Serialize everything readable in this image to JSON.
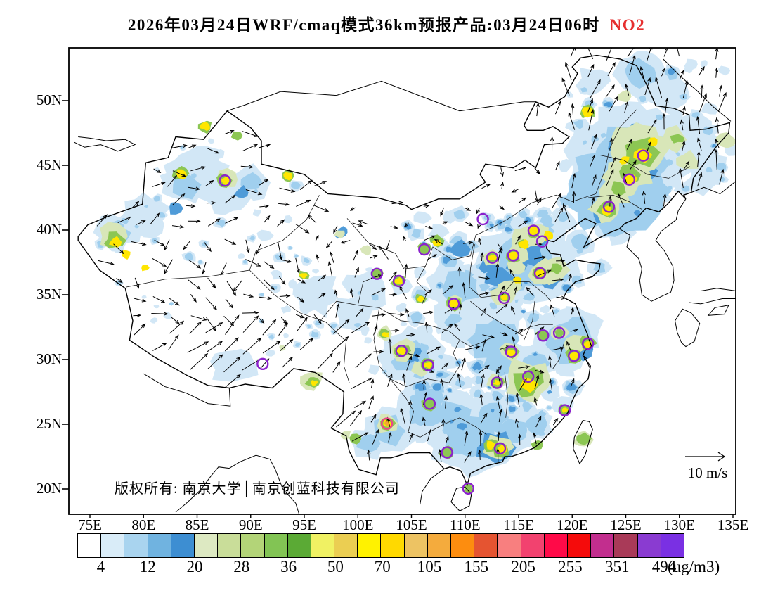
{
  "title": {
    "text": "2026年03月24日WRF/cmaq模式36km预报产品:03月24日06时",
    "pollutant": "NO2",
    "pollutant_color": "#e62e2e"
  },
  "map": {
    "lat_labels": [
      "50N",
      "45N",
      "40N",
      "35N",
      "30N",
      "25N",
      "20N"
    ],
    "lon_labels": [
      "75E",
      "80E",
      "85E",
      "90E",
      "95E",
      "100E",
      "105E",
      "110E",
      "115E",
      "120E",
      "125E",
      "130E",
      "135E"
    ],
    "copyright": "版权所有: 南京大学│南京创蓝科技有限公司",
    "wind_legend": "10 m/s"
  },
  "chart_data": {
    "type": "heatmap",
    "title": "2026年03月24日WRF/cmaq模式36km预报产品:03月24日06时 NO2",
    "model": "WRF/cmaq 36km",
    "valid_time": "03月24日06时",
    "variable": "NO2",
    "lon_axis": [
      "75E",
      "80E",
      "85E",
      "90E",
      "95E",
      "100E",
      "105E",
      "110E",
      "115E",
      "120E",
      "125E",
      "130E",
      "135E"
    ],
    "lat_axis": [
      "20N",
      "25N",
      "30N",
      "35N",
      "40N",
      "45N",
      "50N"
    ],
    "colorbar": {
      "unit": "(ug/m3)",
      "tick_labels": [
        "4",
        "12",
        "20",
        "28",
        "36",
        "50",
        "70",
        "105",
        "155",
        "205",
        "255",
        "351",
        "494"
      ],
      "colors": [
        "#ffffff",
        "#d9ecf8",
        "#a9d4ef",
        "#70b3e0",
        "#3d8ed2",
        "#dde9c2",
        "#c9dd99",
        "#b3d478",
        "#82c454",
        "#5baa35",
        "#f0f163",
        "#ebce52",
        "#fff200",
        "#ffd900",
        "#edc363",
        "#f4ab3d",
        "#fd8d0f",
        "#e55431",
        "#f87f7f",
        "#f2426f",
        "#ff0a48",
        "#f50b0b",
        "#c22e8e",
        "#a93a58",
        "#8a3bd1",
        "#7a30e3"
      ]
    },
    "wind_reference_ms": 10,
    "city_markers": [
      {
        "lon": 87.6,
        "lat": 43.82
      },
      {
        "lon": 111.66,
        "lat": 40.84
      },
      {
        "lon": 116.4,
        "lat": 39.95
      },
      {
        "lon": 117.2,
        "lat": 39.12
      },
      {
        "lon": 114.5,
        "lat": 38.04
      },
      {
        "lon": 112.55,
        "lat": 37.87
      },
      {
        "lon": 117.0,
        "lat": 36.67
      },
      {
        "lon": 113.65,
        "lat": 34.76
      },
      {
        "lon": 108.95,
        "lat": 34.3
      },
      {
        "lon": 106.2,
        "lat": 38.5
      },
      {
        "lon": 103.82,
        "lat": 36.06
      },
      {
        "lon": 101.78,
        "lat": 36.62
      },
      {
        "lon": 126.63,
        "lat": 45.75
      },
      {
        "lon": 125.32,
        "lat": 43.9
      },
      {
        "lon": 123.43,
        "lat": 41.8
      },
      {
        "lon": 117.28,
        "lat": 31.86
      },
      {
        "lon": 118.78,
        "lat": 32.06
      },
      {
        "lon": 121.47,
        "lat": 31.23
      },
      {
        "lon": 120.16,
        "lat": 30.28
      },
      {
        "lon": 114.3,
        "lat": 30.6
      },
      {
        "lon": 104.07,
        "lat": 30.67
      },
      {
        "lon": 106.55,
        "lat": 29.57
      },
      {
        "lon": 112.98,
        "lat": 28.2
      },
      {
        "lon": 115.9,
        "lat": 28.68
      },
      {
        "lon": 119.3,
        "lat": 26.08
      },
      {
        "lon": 106.7,
        "lat": 26.58
      },
      {
        "lon": 102.71,
        "lat": 25.05,
        "color": "#ee4488"
      },
      {
        "lon": 113.26,
        "lat": 23.13
      },
      {
        "lon": 108.32,
        "lat": 22.82
      },
      {
        "lon": 110.3,
        "lat": 20.03
      },
      {
        "lon": 91.12,
        "lat": 29.66
      }
    ],
    "hotspots_approx": [
      [
        125.5,
        45.8,
        85,
        2
      ],
      [
        124,
        43,
        70,
        2,
        2
      ],
      [
        124.5,
        43.6,
        18,
        3,
        3
      ],
      [
        126.9,
        44.6,
        16,
        3,
        3
      ],
      [
        127.4,
        46.2,
        14,
        3,
        3
      ],
      [
        124.3,
        46.5,
        14,
        3,
        3
      ],
      [
        126,
        47.6,
        13,
        3,
        3
      ],
      [
        126.2,
        46.3,
        42,
        4,
        4
      ],
      [
        125,
        44.4,
        34,
        4,
        4
      ],
      [
        123.8,
        42.8,
        24,
        4,
        4
      ],
      [
        126.3,
        46,
        26,
        5,
        5
      ],
      [
        125.3,
        44.3,
        16,
        5,
        5
      ],
      [
        124.3,
        43.3,
        12,
        5,
        5
      ],
      [
        126.63,
        45.8,
        12,
        6,
        6
      ],
      [
        125.32,
        43.95,
        10,
        6,
        6
      ],
      [
        124.9,
        45.4,
        7,
        6,
        6
      ],
      [
        127.6,
        46.8,
        7,
        6,
        6
      ],
      [
        122.9,
        41.3,
        16,
        3,
        3
      ],
      [
        123.2,
        41.6,
        22,
        4,
        4
      ],
      [
        123.3,
        41.7,
        14,
        5,
        5
      ],
      [
        123.2,
        41.5,
        8,
        6,
        6
      ],
      [
        129.5,
        47,
        20,
        4,
        4
      ],
      [
        130.8,
        45.3,
        16,
        4,
        4
      ],
      [
        134.3,
        46.9,
        14,
        4,
        4
      ],
      [
        129.8,
        47.1,
        9,
        5,
        5
      ],
      [
        125,
        50.3,
        10,
        4,
        4
      ],
      [
        121.4,
        49.15,
        11,
        5,
        5
      ],
      [
        121.4,
        49.1,
        8,
        6,
        6
      ],
      [
        126.5,
        52,
        40,
        2
      ],
      [
        128.5,
        50.5,
        30,
        1
      ],
      [
        122,
        51.5,
        25,
        1
      ],
      [
        130.5,
        46.5,
        50,
        1
      ],
      [
        133,
        45,
        25,
        1
      ],
      [
        131.8,
        43.6,
        22,
        1
      ],
      [
        124.5,
        39.8,
        20,
        1
      ],
      [
        120.7,
        39,
        22,
        2
      ],
      [
        115.8,
        37.5,
        70,
        2
      ],
      [
        116,
        38.2,
        22,
        3,
        3
      ],
      [
        114.9,
        37.3,
        15,
        3,
        3
      ],
      [
        117.5,
        36.8,
        14,
        3,
        3
      ],
      [
        116.8,
        39.2,
        16,
        3,
        3
      ],
      [
        112.3,
        37.3,
        14,
        3,
        3
      ],
      [
        118,
        36.2,
        14,
        3,
        3
      ],
      [
        115.2,
        39.3,
        18,
        4,
        4
      ],
      [
        115.0,
        38.3,
        16,
        4,
        4
      ],
      [
        114.8,
        37.2,
        14,
        4,
        4
      ],
      [
        116.5,
        39.5,
        22,
        4,
        4
      ],
      [
        117.2,
        36.8,
        20,
        4,
        4
      ],
      [
        113.5,
        35.0,
        16,
        4,
        4
      ],
      [
        118.8,
        36.9,
        14,
        4,
        4
      ],
      [
        114.2,
        35.5,
        16,
        4,
        4
      ],
      [
        112.4,
        37.8,
        14,
        4,
        4
      ],
      [
        118.3,
        36.8,
        22,
        4,
        4
      ],
      [
        116.35,
        39.9,
        10,
        5,
        5
      ],
      [
        114.5,
        38.0,
        10,
        5,
        5
      ],
      [
        117.0,
        36.7,
        10,
        5,
        5
      ],
      [
        112.5,
        37.85,
        9,
        5,
        5
      ],
      [
        115.4,
        38.9,
        9,
        5,
        5
      ],
      [
        118.5,
        37,
        9,
        5,
        5
      ],
      [
        116.4,
        39.92,
        8,
        6,
        6
      ],
      [
        117.8,
        39.55,
        8,
        6,
        6
      ],
      [
        114.5,
        38.05,
        8,
        6,
        6
      ],
      [
        112.55,
        37.87,
        6,
        6,
        6
      ],
      [
        117.0,
        36.68,
        7,
        6,
        6
      ],
      [
        114.9,
        36.1,
        6,
        6,
        6
      ],
      [
        115.5,
        38.9,
        7,
        6,
        6
      ],
      [
        111.5,
        33.5,
        65,
        1
      ],
      [
        109.5,
        35.5,
        45,
        2
      ],
      [
        113.3,
        36.3,
        20,
        3,
        3
      ],
      [
        108.5,
        37.5,
        18,
        2
      ],
      [
        109.5,
        38.5,
        14,
        3,
        3
      ],
      [
        108.9,
        34.3,
        14,
        4,
        4
      ],
      [
        108.9,
        34.31,
        11,
        5,
        5
      ],
      [
        108.95,
        34.33,
        7,
        6,
        6
      ],
      [
        105.8,
        34.7,
        8,
        5,
        5
      ],
      [
        105.85,
        34.7,
        5,
        6,
        6
      ],
      [
        113.65,
        34.8,
        12,
        4,
        4
      ],
      [
        113.65,
        34.78,
        8,
        5,
        5
      ],
      [
        113.66,
        34.76,
        5,
        6,
        6
      ],
      [
        114.3,
        30.6,
        16,
        4,
        4
      ],
      [
        114.3,
        30.6,
        10,
        5,
        5
      ],
      [
        114.35,
        30.55,
        6,
        6,
        6
      ],
      [
        112.8,
        31.5,
        35,
        2,
        2
      ],
      [
        113.5,
        29.8,
        40,
        2
      ],
      [
        116.5,
        29.8,
        30,
        2
      ],
      [
        115.8,
        28.4,
        34,
        4,
        4
      ],
      [
        115.85,
        28.25,
        22,
        5,
        5
      ],
      [
        115.9,
        28.1,
        12,
        6,
        6
      ],
      [
        113,
        28.3,
        14,
        4,
        4
      ],
      [
        113,
        28.2,
        9,
        5,
        5
      ],
      [
        113,
        28.2,
        5,
        6,
        6
      ],
      [
        119.2,
        31.8,
        45,
        2
      ],
      [
        120.5,
        32.3,
        35,
        2
      ],
      [
        119.5,
        30.5,
        30,
        2
      ],
      [
        120.8,
        30.8,
        18,
        3,
        3
      ],
      [
        120,
        31,
        14,
        4,
        4
      ],
      [
        120.6,
        31.3,
        16,
        4,
        4
      ],
      [
        118.8,
        32.05,
        12,
        4,
        4
      ],
      [
        118.8,
        32.05,
        7,
        5,
        5
      ],
      [
        120.16,
        30.3,
        12,
        5,
        5
      ],
      [
        120.2,
        30.3,
        7,
        6,
        6
      ],
      [
        121.4,
        31.25,
        12,
        5,
        5
      ],
      [
        121.45,
        31.2,
        6,
        6,
        6
      ],
      [
        117.28,
        31.88,
        10,
        5,
        5
      ],
      [
        105.2,
        30.2,
        48,
        2
      ],
      [
        104.8,
        30.5,
        16,
        3,
        3
      ],
      [
        104.3,
        30.7,
        18,
        4,
        4
      ],
      [
        105.8,
        29.3,
        14,
        4,
        4
      ],
      [
        104.1,
        30.68,
        11,
        5,
        5
      ],
      [
        106.55,
        29.6,
        10,
        5,
        5
      ],
      [
        104.1,
        30.66,
        7,
        6,
        6
      ],
      [
        106.6,
        29.58,
        6,
        6,
        6
      ],
      [
        102.5,
        32,
        12,
        4,
        4
      ],
      [
        102.5,
        31.95,
        8,
        5,
        5
      ],
      [
        102.6,
        31.9,
        5,
        6,
        6
      ],
      [
        110.5,
        24,
        60,
        2
      ],
      [
        106.5,
        26,
        50,
        2
      ],
      [
        109,
        25.5,
        45,
        2
      ],
      [
        112.5,
        25.5,
        40,
        2
      ],
      [
        114.5,
        24.5,
        35,
        2
      ],
      [
        116.5,
        25,
        28,
        2
      ],
      [
        106.5,
        27,
        35,
        2
      ],
      [
        103,
        24.5,
        38,
        2
      ],
      [
        101,
        23.5,
        25,
        2
      ],
      [
        112.8,
        23.2,
        26,
        3,
        3
      ],
      [
        113.1,
        23.2,
        20,
        4,
        4
      ],
      [
        113.3,
        23.1,
        13,
        5,
        5
      ],
      [
        112.4,
        23.35,
        10,
        5,
        5
      ],
      [
        113.45,
        23.05,
        8,
        6,
        6
      ],
      [
        112.35,
        23.4,
        7,
        6,
        6
      ],
      [
        106.7,
        26.6,
        11,
        5,
        5
      ],
      [
        102.7,
        25.1,
        16,
        4,
        4
      ],
      [
        102.7,
        25.07,
        11,
        5,
        5
      ],
      [
        102.72,
        25.05,
        7,
        6,
        6
      ],
      [
        102.73,
        25.04,
        4,
        7,
        7
      ],
      [
        108.32,
        22.85,
        11,
        5,
        5
      ],
      [
        99.8,
        23.8,
        9,
        5,
        5
      ],
      [
        98.9,
        24.2,
        7,
        4,
        4
      ],
      [
        119.3,
        26.1,
        10,
        5,
        5
      ],
      [
        119.32,
        26.1,
        5,
        6,
        6
      ],
      [
        116.7,
        23.35,
        9,
        5,
        5
      ],
      [
        121,
        23.8,
        13,
        4,
        4
      ],
      [
        121.05,
        23.9,
        10,
        5,
        5
      ],
      [
        110.32,
        20.05,
        8,
        5,
        5
      ],
      [
        95.7,
        28.4,
        16,
        4,
        4
      ],
      [
        95.8,
        28.3,
        10,
        5,
        5
      ],
      [
        95.9,
        28.2,
        5,
        6,
        6
      ],
      [
        93,
        30.9,
        5,
        4,
        4
      ],
      [
        84,
        43.5,
        35,
        2
      ],
      [
        90,
        43.7,
        28,
        2
      ],
      [
        87.6,
        43.9,
        16,
        4,
        4
      ],
      [
        87.6,
        43.85,
        11,
        5,
        5
      ],
      [
        87.65,
        43.82,
        7,
        6,
        6
      ],
      [
        85.8,
        48,
        10,
        5,
        5
      ],
      [
        85.8,
        48,
        7,
        6,
        6
      ],
      [
        88.7,
        47.3,
        8,
        5,
        5
      ],
      [
        83.4,
        44.35,
        11,
        5,
        5
      ],
      [
        83.5,
        44.3,
        8,
        6,
        6
      ],
      [
        93.5,
        44.2,
        10,
        5,
        5
      ],
      [
        93.5,
        44.2,
        7,
        6,
        6
      ],
      [
        77.2,
        39.5,
        22,
        4,
        4
      ],
      [
        77.3,
        39.2,
        14,
        5,
        5
      ],
      [
        77.4,
        39.05,
        9,
        6,
        6
      ],
      [
        78.4,
        38.1,
        7,
        6,
        6
      ],
      [
        80.1,
        37.1,
        6,
        6,
        6
      ],
      [
        77.5,
        39.8,
        30,
        2
      ],
      [
        94.9,
        36.5,
        8,
        5,
        5
      ],
      [
        94.9,
        36.5,
        5,
        6,
        6
      ],
      [
        103.8,
        36.07,
        10,
        5,
        5
      ],
      [
        103.82,
        36.05,
        6,
        6,
        6
      ],
      [
        101.78,
        36.63,
        9,
        5,
        5
      ],
      [
        106.2,
        38.6,
        9,
        5,
        5
      ],
      [
        107.3,
        39.2,
        10,
        5,
        5
      ],
      [
        107.4,
        39.0,
        6,
        6,
        6
      ],
      [
        98.5,
        39.8,
        10,
        3,
        3
      ],
      [
        100.8,
        38.4,
        8,
        4,
        4
      ],
      [
        98.3,
        39.7,
        8,
        4,
        4
      ],
      [
        85,
        44.3,
        45,
        1
      ],
      [
        80,
        41,
        35,
        1
      ],
      [
        88,
        42.5,
        30,
        1
      ],
      [
        89.2,
        42.9,
        11,
        3,
        3
      ],
      [
        82.9,
        41.7,
        10,
        3,
        3
      ],
      [
        96,
        35,
        35,
        1
      ],
      [
        99.5,
        33.5,
        30,
        1
      ],
      [
        88.5,
        29.5,
        32,
        1
      ],
      [
        101,
        35.5,
        32,
        1
      ]
    ]
  }
}
